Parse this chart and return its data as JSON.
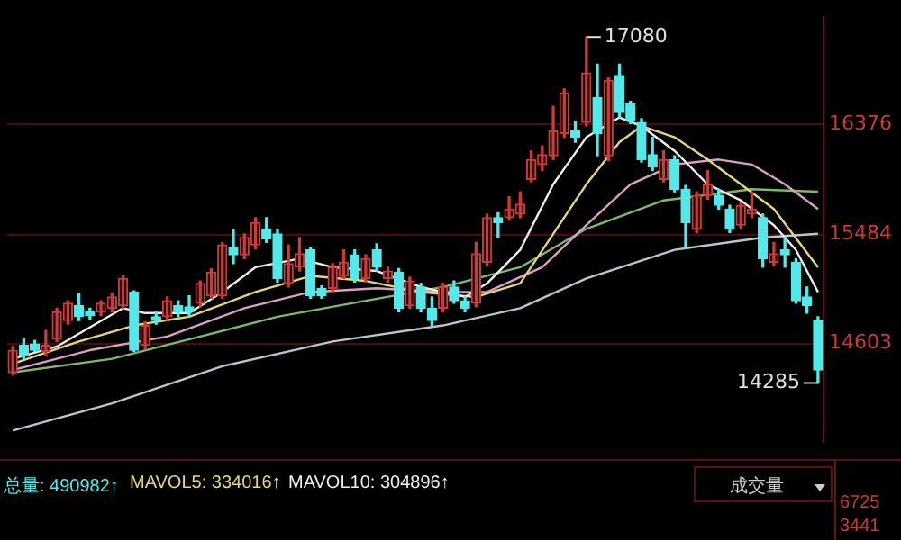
{
  "chart_data": {
    "type": "candlestick",
    "categories": [
      null,
      null,
      null,
      null,
      null,
      null,
      null,
      null,
      null,
      null,
      null,
      null,
      null,
      null,
      null,
      null,
      null,
      null,
      null,
      null,
      null,
      null,
      null,
      null,
      null,
      null,
      null,
      null,
      null,
      null,
      null,
      null,
      null,
      null,
      null,
      null,
      null,
      null,
      null,
      null,
      null,
      null,
      null,
      null,
      null,
      null,
      null,
      null,
      null,
      null,
      null,
      null,
      null,
      null,
      null,
      null,
      null,
      null,
      null,
      null,
      null,
      null,
      null,
      null,
      null,
      null,
      null,
      null,
      null,
      null,
      null,
      null,
      null,
      null
    ],
    "ohlc": [
      [
        14370,
        14580,
        14350,
        14550
      ],
      [
        14590,
        14640,
        14480,
        14510
      ],
      [
        14600,
        14630,
        14540,
        14550
      ],
      [
        14540,
        14710,
        14510,
        14590
      ],
      [
        14640,
        14890,
        14620,
        14860
      ],
      [
        14790,
        14950,
        14760,
        14930
      ],
      [
        14910,
        15010,
        14790,
        14820
      ],
      [
        14860,
        14890,
        14800,
        14830
      ],
      [
        14860,
        14950,
        14830,
        14930
      ],
      [
        14890,
        15010,
        14860,
        14980
      ],
      [
        14910,
        15150,
        14890,
        15130
      ],
      [
        15020,
        15030,
        14540,
        14550
      ],
      [
        14590,
        14780,
        14560,
        14750
      ],
      [
        14820,
        14860,
        14760,
        14790
      ],
      [
        14820,
        14980,
        14790,
        14950
      ],
      [
        14910,
        14950,
        14820,
        14860
      ],
      [
        14900,
        14990,
        14820,
        14860
      ],
      [
        14930,
        15110,
        14900,
        15090
      ],
      [
        14990,
        15210,
        14970,
        15180
      ],
      [
        14990,
        15420,
        14970,
        15400
      ],
      [
        15380,
        15520,
        15250,
        15320
      ],
      [
        15320,
        15490,
        15290,
        15460
      ],
      [
        15400,
        15620,
        15370,
        15580
      ],
      [
        15530,
        15620,
        15420,
        15450
      ],
      [
        15490,
        15520,
        15100,
        15130
      ],
      [
        15090,
        15400,
        15060,
        15250
      ],
      [
        15220,
        15460,
        15190,
        15330
      ],
      [
        15360,
        15380,
        14970,
        14990
      ],
      [
        15050,
        15070,
        14970,
        14990
      ],
      [
        15050,
        15250,
        15020,
        15220
      ],
      [
        15150,
        15360,
        15130,
        15260
      ],
      [
        15320,
        15360,
        15100,
        15130
      ],
      [
        15130,
        15320,
        15100,
        15290
      ],
      [
        15360,
        15410,
        15190,
        15220
      ],
      [
        15130,
        15220,
        15100,
        15190
      ],
      [
        15180,
        15210,
        14860,
        14890
      ],
      [
        14910,
        15140,
        14890,
        15110
      ],
      [
        15060,
        15090,
        14860,
        14890
      ],
      [
        14890,
        14980,
        14750,
        14790
      ],
      [
        14890,
        15090,
        14860,
        15060
      ],
      [
        15060,
        15110,
        14930,
        14950
      ],
      [
        14950,
        14980,
        14860,
        14890
      ],
      [
        14930,
        15420,
        14900,
        15330
      ],
      [
        15260,
        15650,
        15230,
        15620
      ],
      [
        15620,
        15660,
        15460,
        15580
      ],
      [
        15620,
        15790,
        15600,
        15690
      ],
      [
        15650,
        15830,
        15620,
        15730
      ],
      [
        15930,
        16160,
        15910,
        16090
      ],
      [
        16050,
        16200,
        16000,
        16130
      ],
      [
        16120,
        16520,
        16090,
        16320
      ],
      [
        16300,
        16660,
        16270,
        16630
      ],
      [
        16320,
        16400,
        16230,
        16270
      ],
      [
        16390,
        17080,
        16360,
        16790
      ],
      [
        16590,
        16860,
        16120,
        16300
      ],
      [
        16120,
        16750,
        16080,
        16730
      ],
      [
        16770,
        16860,
        16430,
        16470
      ],
      [
        16540,
        16560,
        16380,
        16400
      ],
      [
        16390,
        16420,
        16070,
        16090
      ],
      [
        16130,
        16270,
        16000,
        16030
      ],
      [
        15930,
        16160,
        15910,
        16090
      ],
      [
        16090,
        16120,
        15830,
        15850
      ],
      [
        15850,
        15880,
        15380,
        15580
      ],
      [
        15530,
        15830,
        15500,
        15800
      ],
      [
        15800,
        16000,
        15770,
        15890
      ],
      [
        15800,
        15850,
        15690,
        15720
      ],
      [
        15690,
        15720,
        15500,
        15530
      ],
      [
        15560,
        15740,
        15530,
        15720
      ],
      [
        15650,
        15830,
        15620,
        15690
      ],
      [
        15620,
        15650,
        15220,
        15290
      ],
      [
        15260,
        15420,
        15230,
        15330
      ],
      [
        15360,
        15460,
        15220,
        15320
      ],
      [
        15260,
        15290,
        14930,
        14950
      ],
      [
        14980,
        15060,
        14850,
        14910
      ],
      [
        14790,
        14820,
        14285,
        14390
      ]
    ],
    "series": [
      {
        "type": "line",
        "color": "#eeeeee",
        "values": [
          14480,
          null,
          null,
          null,
          14580,
          null,
          null,
          null,
          null,
          null,
          14890,
          null,
          14850,
          null,
          null,
          null,
          14850,
          null,
          null,
          15020,
          null,
          null,
          15220,
          null,
          null,
          null,
          15290,
          null,
          null,
          15220,
          null,
          null,
          null,
          15190,
          null,
          null,
          null,
          15060,
          null,
          null,
          null,
          14980,
          null,
          15090,
          null,
          null,
          15360,
          null,
          null,
          15890,
          null,
          null,
          16270,
          null,
          null,
          16430,
          null,
          16360,
          null,
          null,
          16160,
          null,
          null,
          15890,
          null,
          null,
          15760,
          null,
          null,
          15560,
          null,
          15360,
          null,
          15020
        ]
      },
      {
        "type": "line",
        "color": "#e6d67a",
        "values": [
          14440,
          null,
          null,
          null,
          null,
          null,
          14620,
          null,
          null,
          null,
          null,
          14750,
          null,
          null,
          null,
          null,
          14820,
          null,
          null,
          null,
          null,
          null,
          15020,
          null,
          null,
          null,
          null,
          15150,
          null,
          null,
          null,
          null,
          15110,
          null,
          null,
          null,
          null,
          15020,
          null,
          null,
          null,
          null,
          14980,
          null,
          null,
          null,
          15090,
          null,
          null,
          15490,
          null,
          null,
          15890,
          null,
          null,
          16230,
          null,
          16360,
          null,
          null,
          16270,
          null,
          null,
          16090,
          null,
          null,
          15890,
          null,
          null,
          15690,
          null,
          null,
          null,
          15220
        ]
      },
      {
        "type": "line",
        "color": "#d8a0c4",
        "values": [
          14390,
          null,
          null,
          null,
          null,
          null,
          null,
          14550,
          null,
          null,
          null,
          null,
          null,
          null,
          14660,
          null,
          null,
          null,
          null,
          null,
          null,
          14890,
          null,
          null,
          null,
          null,
          null,
          15020,
          null,
          null,
          null,
          null,
          null,
          15050,
          null,
          null,
          null,
          null,
          null,
          15020,
          null,
          null,
          null,
          15020,
          null,
          null,
          null,
          null,
          15220,
          null,
          null,
          null,
          15560,
          null,
          null,
          null,
          15890,
          null,
          null,
          null,
          16050,
          null,
          null,
          null,
          16090,
          null,
          null,
          16050,
          null,
          null,
          15890,
          null,
          null,
          15690
        ]
      },
      {
        "type": "line",
        "color": "#7fb86a",
        "values": [
          14370,
          null,
          null,
          null,
          null,
          null,
          null,
          null,
          null,
          14480,
          null,
          null,
          null,
          null,
          null,
          null,
          null,
          14660,
          null,
          null,
          null,
          null,
          null,
          null,
          14820,
          null,
          null,
          null,
          null,
          null,
          null,
          null,
          14950,
          null,
          null,
          null,
          null,
          null,
          null,
          15060,
          null,
          null,
          null,
          null,
          null,
          null,
          15220,
          null,
          null,
          null,
          null,
          null,
          15530,
          null,
          null,
          null,
          null,
          null,
          null,
          15760,
          null,
          null,
          null,
          null,
          null,
          null,
          null,
          15850,
          null,
          null,
          null,
          null,
          null,
          15830
        ]
      },
      {
        "type": "line",
        "color": "#b4c8c8",
        "values": [
          13900,
          null,
          null,
          null,
          null,
          null,
          null,
          null,
          null,
          14120,
          null,
          null,
          null,
          null,
          null,
          null,
          null,
          null,
          null,
          14420,
          null,
          null,
          null,
          null,
          null,
          null,
          null,
          null,
          null,
          14620,
          null,
          null,
          null,
          null,
          null,
          null,
          null,
          null,
          null,
          14750,
          null,
          null,
          null,
          null,
          null,
          null,
          14890,
          null,
          null,
          null,
          null,
          null,
          15130,
          null,
          null,
          null,
          null,
          null,
          null,
          null,
          15360,
          null,
          null,
          null,
          null,
          null,
          null,
          null,
          15460,
          null,
          null,
          null,
          null,
          15490
        ]
      }
    ],
    "ylim": [
      13810,
      17240
    ],
    "yticks": [
      14603,
      15484,
      16376
    ],
    "grid": "y",
    "tick_labels": "y",
    "annotations": [
      "17080",
      "14285",
      "总量: 490982↑",
      "MAVOL5: 334016↑",
      "MAVOL10: 304896↑",
      "成交量",
      "6725",
      "3441"
    ]
  }
}
